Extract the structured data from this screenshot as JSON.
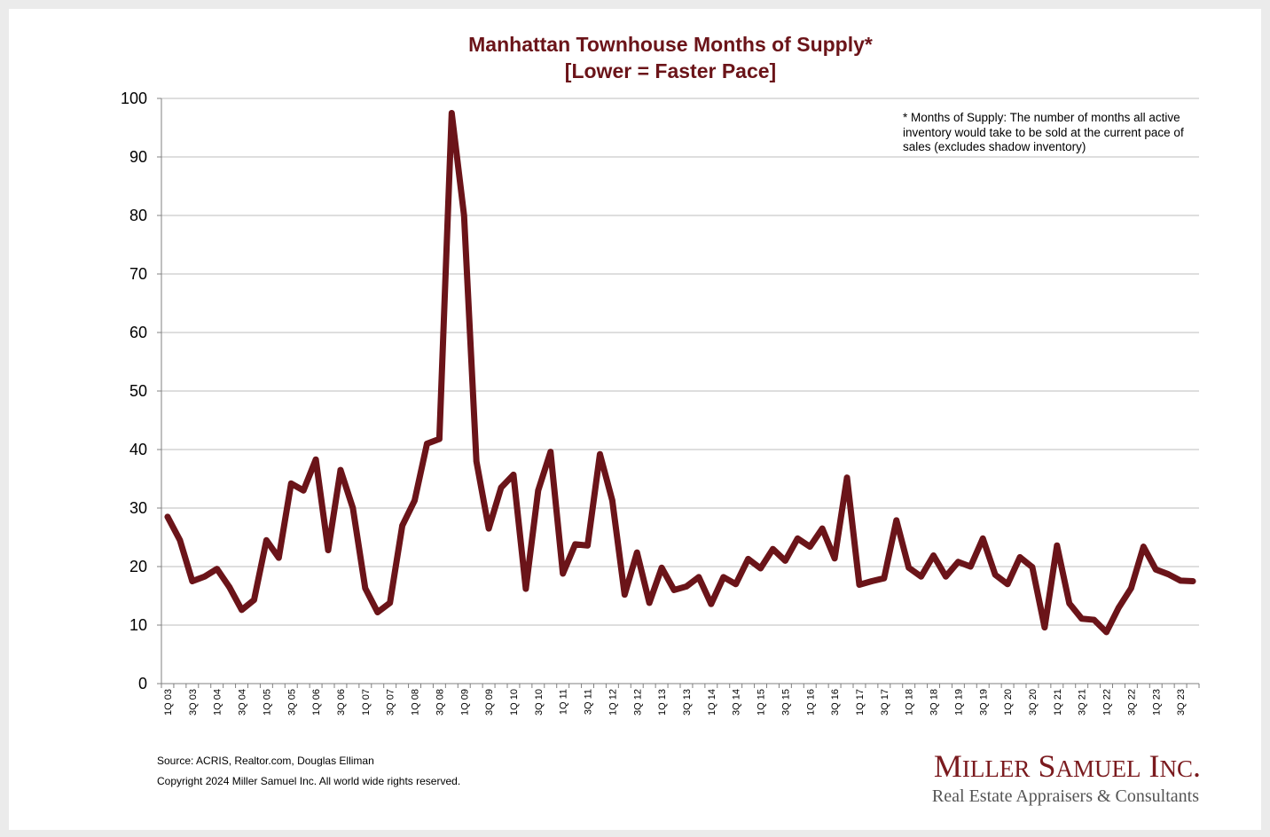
{
  "colors": {
    "accent": "#6b1419",
    "grid": "#bdbdbd",
    "logo": "#7a1a1e",
    "logo_sub": "#555555"
  },
  "chart_data": {
    "type": "line",
    "title": "Manhattan Townhouse Months of Supply*",
    "subtitle": "[Lower = Faster Pace]",
    "xlabel": "",
    "ylabel": "",
    "ylim": [
      0,
      100
    ],
    "yticks": [
      0,
      10,
      20,
      30,
      40,
      50,
      60,
      70,
      80,
      90,
      100
    ],
    "grid": true,
    "legend": "none",
    "x_tick_labels": [
      "1Q 03",
      "3Q 03",
      "1Q 04",
      "3Q 04",
      "1Q 05",
      "3Q 05",
      "1Q 06",
      "3Q 06",
      "1Q 07",
      "3Q 07",
      "1Q 08",
      "3Q 08",
      "1Q 09",
      "3Q 09",
      "1Q 10",
      "3Q 10",
      "1Q 11",
      "3Q 11",
      "1Q 12",
      "3Q 12",
      "1Q 13",
      "3Q 13",
      "1Q 14",
      "3Q 14",
      "1Q 15",
      "3Q 15",
      "1Q 16",
      "3Q 16",
      "1Q 17",
      "3Q 17",
      "1Q 18",
      "3Q 18",
      "1Q 19",
      "3Q 19",
      "1Q 20",
      "3Q 20",
      "1Q 21",
      "3Q 21",
      "1Q 22",
      "3Q 22",
      "1Q 23",
      "3Q 23"
    ],
    "series": [
      {
        "name": "Months of Supply",
        "values": [
          28.5,
          24.5,
          17.5,
          18.3,
          19.6,
          16.5,
          12.6,
          14.3,
          24.5,
          21.5,
          34.2,
          33.0,
          38.3,
          22.8,
          36.5,
          30.0,
          16.3,
          12.2,
          13.8,
          27.0,
          31.3,
          41.0,
          41.8,
          97.5,
          80.0,
          38.0,
          26.5,
          33.5,
          35.7,
          16.2,
          33.0,
          39.6,
          18.8,
          23.8,
          23.6,
          39.2,
          31.3,
          15.2,
          22.4,
          13.8,
          19.8,
          16.0,
          16.6,
          18.2,
          13.6,
          18.2,
          17.0,
          21.3,
          19.7,
          23.0,
          21.0,
          24.8,
          23.4,
          26.5,
          21.4,
          35.2,
          16.9,
          17.5,
          18.0,
          27.9,
          19.8,
          18.3,
          21.9,
          18.3,
          20.8,
          20.0,
          24.8,
          18.6,
          17.0,
          21.6,
          19.9,
          9.6,
          23.6,
          13.7,
          11.1,
          10.9,
          8.8,
          13.0,
          16.3,
          23.4,
          19.5,
          18.7,
          17.6,
          17.5
        ]
      }
    ],
    "annotation": [
      "* Months of Supply: The number of months all active",
      "inventory would take to be sold at the current pace of",
      "sales (excludes shadow inventory)"
    ]
  },
  "footer": {
    "source": "Source: ACRIS, Realtor.com, Douglas Elliman",
    "copyright": "Copyright 2024 Miller Samuel Inc.  All world wide rights reserved."
  },
  "logo": {
    "name": "Miller Samuel Inc.",
    "tagline": "Real Estate Appraisers & Consultants"
  }
}
